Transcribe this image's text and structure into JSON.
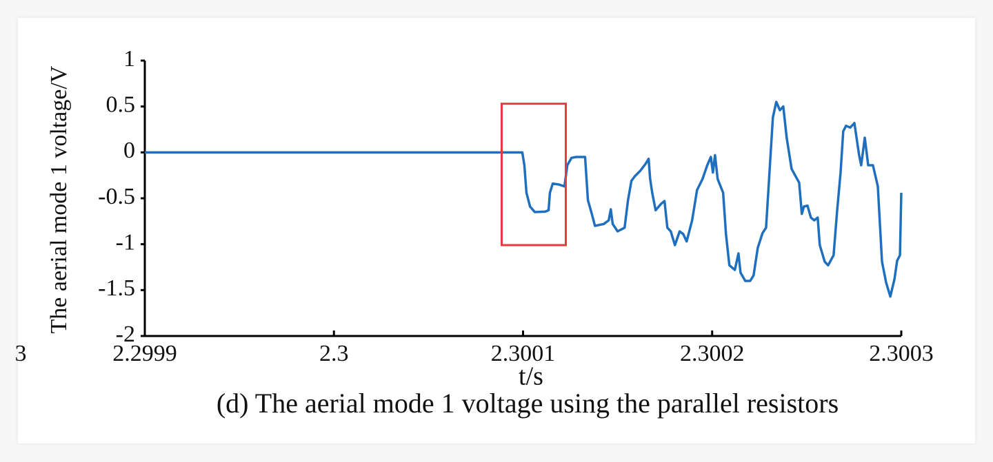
{
  "chart_data": {
    "type": "line",
    "caption": "(d) The aerial mode 1 voltage using the parallel resistors",
    "xlabel": "t/s",
    "ylabel": "The aerial mode 1 voltage/V",
    "edge_text": "3",
    "xlim": [
      2.2999,
      2.3003
    ],
    "xticks": [
      2.2999,
      2.3,
      2.3001,
      2.3002,
      2.3003
    ],
    "ylim": [
      -2,
      1
    ],
    "yticks": [
      1,
      0.5,
      0,
      -0.5,
      -1,
      -1.5,
      -2
    ],
    "highlight": {
      "xlim": [
        2.3000887,
        2.3001226
      ],
      "ylim": [
        -1.01,
        0.53
      ],
      "color": "#e8393b"
    },
    "series": [
      {
        "color": "#1f6fbf",
        "x": [
          2.2999,
          2.3000996,
          2.3001007,
          2.3001018,
          2.3001037,
          2.3001062,
          2.3001117,
          2.3001135,
          2.3001142,
          2.3001157,
          2.300119,
          2.3001219,
          2.3001234,
          2.3001256,
          2.3001281,
          2.3001328,
          2.3001343,
          2.3001365,
          2.300138,
          2.3001427,
          2.3001453,
          2.3001464,
          2.3001474,
          2.30015,
          2.3001537,
          2.3001555,
          2.3001573,
          2.3001591,
          2.300162,
          2.3001646,
          2.3001664,
          2.3001672,
          2.3001683,
          2.3001701,
          2.300173,
          2.3001748,
          2.3001763,
          2.3001781,
          2.3001803,
          2.3001828,
          2.3001847,
          2.3001865,
          2.3001894,
          2.300192,
          2.3001949,
          2.3001974,
          2.3001993,
          2.3002004,
          2.3002015,
          2.3002029,
          2.3002058,
          2.3002073,
          2.3002091,
          2.300212,
          2.3002139,
          2.300215,
          2.3002175,
          2.3002201,
          2.3002219,
          2.3002241,
          2.3002266,
          2.3002285,
          2.3002303,
          2.3002321,
          2.3002339,
          2.3002358,
          2.3002376,
          2.3002394,
          2.300242,
          2.300246,
          2.3002474,
          2.3002485,
          2.3002504,
          2.3002522,
          2.300254,
          2.3002558,
          2.3002569,
          2.3002595,
          2.3002613,
          2.3002642,
          2.3002661,
          2.3002679,
          2.3002693,
          2.3002708,
          2.300273,
          2.3002752,
          2.3002777,
          2.3002788,
          2.3002807,
          2.3002825,
          2.300285,
          2.3002876,
          2.3002898,
          2.300292,
          2.3002942,
          2.3002964,
          2.3002978,
          2.3002993,
          2.3003
        ],
        "values": [
          0,
          0,
          -0.14,
          -0.44,
          -0.59,
          -0.65,
          -0.645,
          -0.63,
          -0.44,
          -0.34,
          -0.35,
          -0.37,
          -0.14,
          -0.06,
          -0.05,
          -0.05,
          -0.52,
          -0.68,
          -0.8,
          -0.78,
          -0.74,
          -0.62,
          -0.78,
          -0.86,
          -0.82,
          -0.52,
          -0.31,
          -0.26,
          -0.2,
          -0.13,
          -0.07,
          -0.29,
          -0.44,
          -0.63,
          -0.56,
          -0.53,
          -0.82,
          -0.86,
          -1.01,
          -0.86,
          -0.89,
          -0.97,
          -0.74,
          -0.41,
          -0.29,
          -0.14,
          -0.05,
          -0.22,
          -0.03,
          -0.29,
          -0.44,
          -0.89,
          -1.23,
          -1.28,
          -1.1,
          -1.31,
          -1.4,
          -1.4,
          -1.34,
          -1.04,
          -0.88,
          -0.82,
          -0.22,
          0.38,
          0.55,
          0.46,
          0.5,
          0.16,
          -0.18,
          -0.33,
          -0.67,
          -0.59,
          -0.58,
          -0.71,
          -0.74,
          -0.71,
          -1.01,
          -1.19,
          -1.23,
          -1.12,
          -0.63,
          -0.22,
          0.23,
          0.29,
          0.27,
          0.32,
          -0.03,
          -0.14,
          0.16,
          -0.14,
          -0.14,
          -0.37,
          -1.19,
          -1.42,
          -1.57,
          -1.38,
          -1.18,
          -1.12,
          -0.44
        ]
      }
    ]
  }
}
